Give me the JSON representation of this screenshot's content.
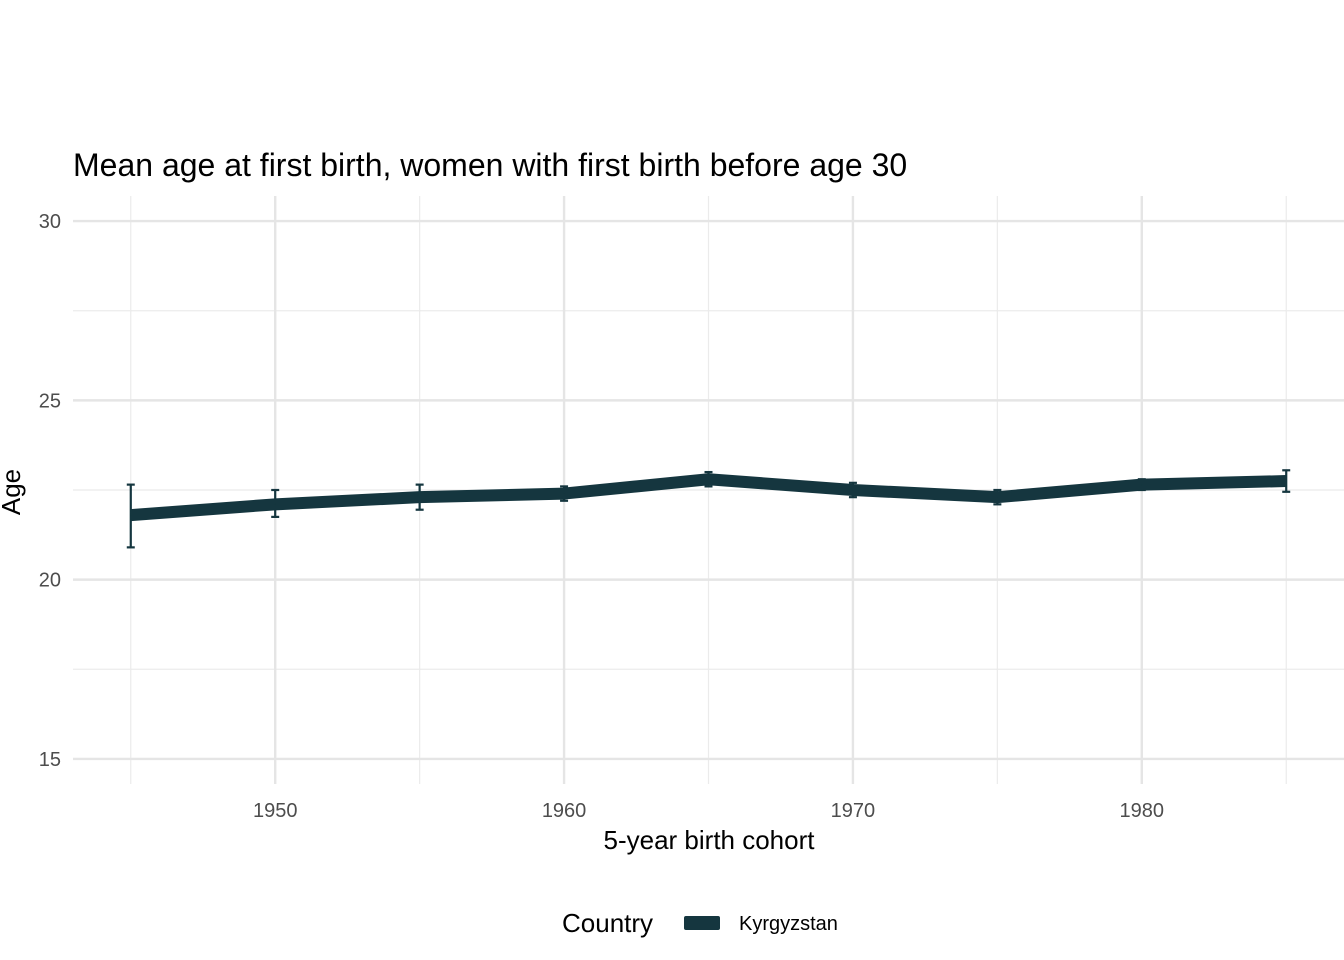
{
  "chart_data": {
    "type": "line",
    "title": "Mean age at first birth, women with first birth before age 30",
    "xlabel": "5-year birth cohort",
    "ylabel": "Age",
    "x": [
      1945,
      1950,
      1955,
      1960,
      1965,
      1970,
      1975,
      1980,
      1985
    ],
    "x_ticks": [
      1950,
      1960,
      1970,
      1980
    ],
    "x_tick_labels": [
      "1950",
      "1960",
      "1970",
      "1980"
    ],
    "y_ticks": [
      15,
      20,
      25,
      30
    ],
    "y_tick_labels": [
      "15",
      "20",
      "25",
      "30"
    ],
    "xlim": [
      1943,
      1987
    ],
    "ylim": [
      14.3,
      30.7
    ],
    "grid": true,
    "legend": {
      "title": "Country",
      "position": "bottom"
    },
    "series": [
      {
        "name": "Kyrgyzstan",
        "color": "#15363f",
        "values": [
          21.8,
          22.1,
          22.3,
          22.4,
          22.8,
          22.5,
          22.3,
          22.65,
          22.75
        ],
        "lower": [
          20.9,
          21.75,
          21.95,
          22.2,
          22.6,
          22.3,
          22.1,
          22.5,
          22.45
        ],
        "upper": [
          22.65,
          22.5,
          22.65,
          22.6,
          23.0,
          22.7,
          22.5,
          22.8,
          23.05
        ]
      }
    ]
  }
}
